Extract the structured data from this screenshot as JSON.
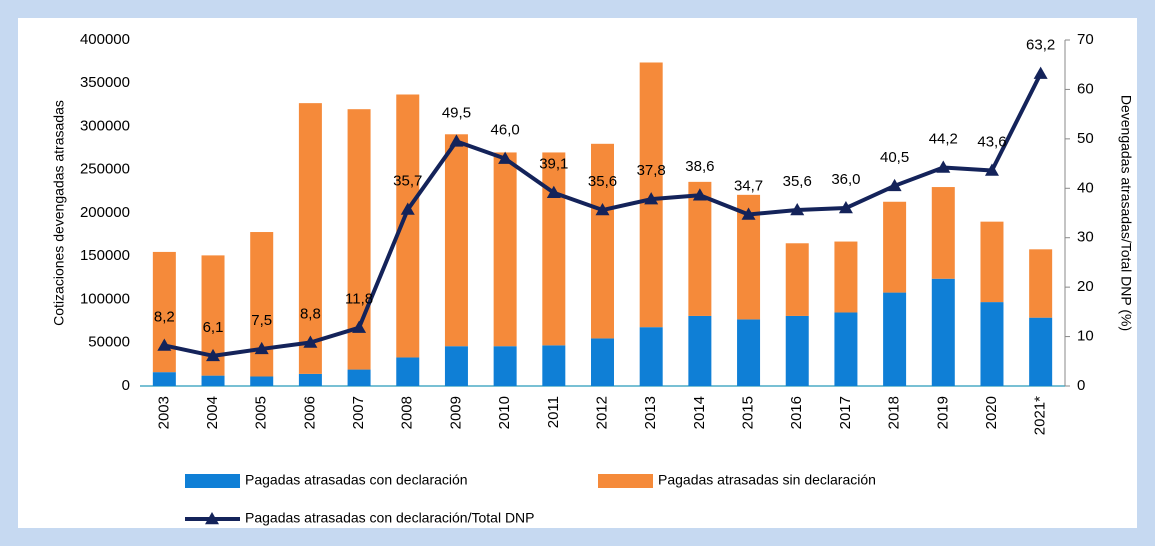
{
  "chart_data": {
    "type": "bar_line",
    "categories": [
      "2003",
      "2004",
      "2005",
      "2006",
      "2007",
      "2008",
      "2009",
      "2010",
      "2011",
      "2012",
      "2013",
      "2014",
      "2015",
      "2016",
      "2017",
      "2018",
      "2019",
      "2020",
      "2021*"
    ],
    "series": [
      {
        "name": "Pagadas atrasadas con declaración",
        "type": "bar",
        "color": "#0f7fd6",
        "values": [
          16000,
          12000,
          11000,
          14000,
          19000,
          33000,
          46000,
          46000,
          47000,
          55000,
          68000,
          81000,
          77000,
          81000,
          85000,
          108000,
          124000,
          97000,
          79000
        ]
      },
      {
        "name": "Pagadas atrasadas sin declaración",
        "type": "bar",
        "color": "#f58a3a",
        "values": [
          139000,
          139000,
          167000,
          313000,
          301000,
          304000,
          245000,
          224000,
          223000,
          225000,
          306000,
          155000,
          144000,
          84000,
          82000,
          105000,
          106000,
          93000,
          79000
        ]
      },
      {
        "name": "Pagadas atrasadas con declaración/Total DNP",
        "type": "line",
        "axis": "y2",
        "color": "#14235a",
        "values": [
          8.2,
          6.1,
          7.5,
          8.8,
          11.8,
          35.7,
          49.5,
          46.0,
          39.1,
          35.6,
          37.8,
          38.6,
          34.7,
          35.6,
          36.0,
          40.5,
          44.2,
          43.6,
          63.2
        ],
        "value_labels": [
          "8,2",
          "6,1",
          "7,5",
          "8,8",
          "11,8",
          "35,7",
          "49,5",
          "46,0",
          "39,1",
          "35,6",
          "37,8",
          "38,6",
          "34,7",
          "35,6",
          "36,0",
          "40,5",
          "44,2",
          "43,6",
          "63,2"
        ]
      }
    ],
    "y_label": "Cotizaciones devengadas atrasadas",
    "y2_label": "Devengadas atrasadas/Total DNP (%)",
    "ylim": [
      0,
      400000
    ],
    "yticks": [
      0,
      50000,
      100000,
      150000,
      200000,
      250000,
      300000,
      350000,
      400000
    ],
    "y2lim": [
      0,
      70
    ],
    "y2ticks": [
      0,
      10,
      20,
      30,
      40,
      50,
      60,
      70
    ],
    "stacked": true,
    "grid": false
  }
}
